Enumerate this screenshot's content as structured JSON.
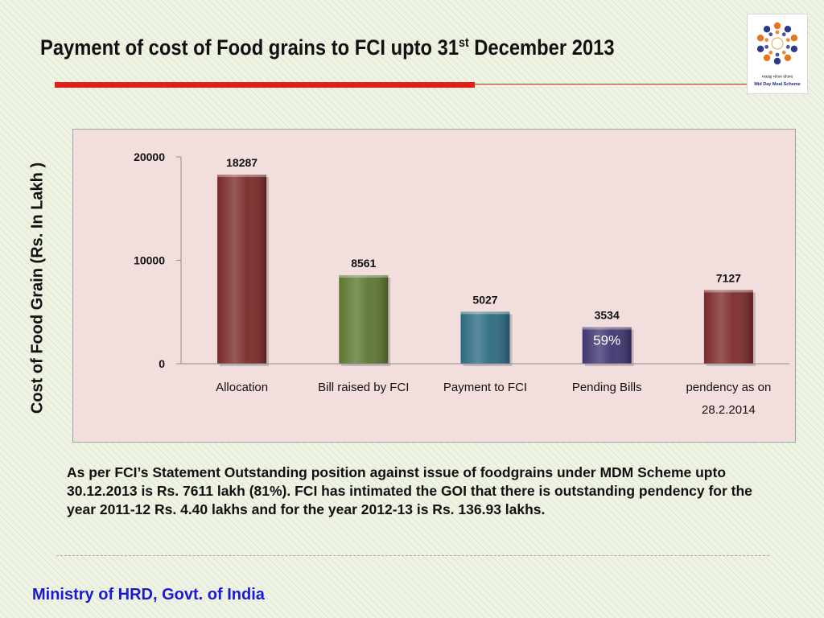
{
  "slide": {
    "title_main": "Payment of cost of Food grains to FCI upto 31",
    "title_sup": "st",
    "title_end": " December 2013",
    "note": "As per FCI’s Statement Outstanding position against issue of foodgrains under MDM Scheme upto 30.12.2013 is Rs. 7611 lakh (81%). FCI has intimated the GOI that there is outstanding pendency for the year 2011-12 Rs. 4.40 lakhs  and  for the year 2012-13 is Rs. 136.93 lakhs.",
    "footer": "Ministry of HRD, Govt. of India",
    "logo_hindi": "मध्याह्न भोजन योजना",
    "logo_text": "Mid Day Meal Scheme"
  },
  "chart_data": {
    "type": "bar",
    "ylabel": "Cost of Food Grain (Rs. In Lakh )",
    "xlabel": "",
    "ylim": [
      0,
      20000
    ],
    "yticks": [
      0,
      10000,
      20000
    ],
    "grid": false,
    "categories": [
      "Allocation",
      "Bill raised by FCI",
      "Payment to FCI",
      "Pending Bills",
      "pendency as on 28.2.2014"
    ],
    "category_lines": [
      [
        "Allocation"
      ],
      [
        "Bill raised by FCI"
      ],
      [
        "Payment to FCI"
      ],
      [
        "Pending Bills"
      ],
      [
        "pendency as on",
        "28.2.2014"
      ]
    ],
    "values": [
      18287,
      8561,
      5027,
      3534,
      7127
    ],
    "colors": [
      "#7a2a28",
      "#5c7530",
      "#2c6a80",
      "#3e3570",
      "#7a2a28"
    ],
    "annotation": {
      "category": "Pending Bills",
      "text": "59%"
    }
  }
}
